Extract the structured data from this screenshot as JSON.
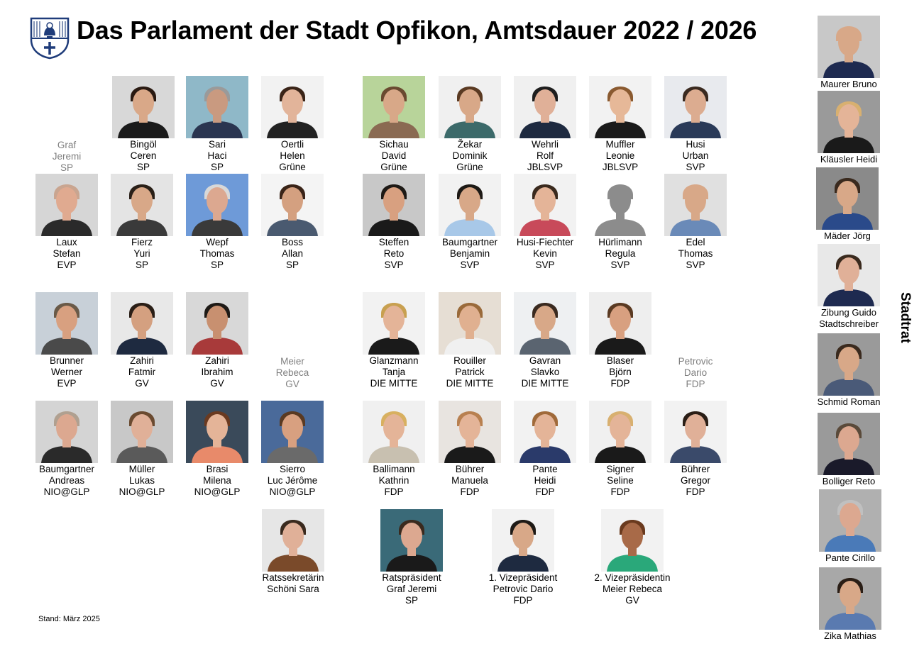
{
  "title": "Das Parlament der Stadt Opfikon, Amtsdauer 2022 / 2026",
  "stand": "Stand: März 2025",
  "stadtrat_label": "Stadtrat",
  "colors": {
    "absent_text": "#7f7f7f",
    "crest_blue": "#1f3c7a"
  },
  "absent": [
    {
      "lines": [
        "Graf",
        "Jeremi",
        "SP"
      ]
    },
    {
      "lines": [
        "Meier",
        "Rebeca",
        "GV"
      ]
    },
    {
      "lines": [
        "Petrovic",
        "Dario",
        "FDP"
      ]
    }
  ],
  "members": [
    {
      "lines": [
        "Bingöl",
        "Ceren",
        "SP"
      ],
      "bg": "#d8d8d8",
      "skin": "#d9a888",
      "hair": "#2a1a12",
      "shirt": "#1a1a1a"
    },
    {
      "lines": [
        "Sari",
        "Haci",
        "SP"
      ],
      "bg": "#8fb8c8",
      "skin": "#c99a80",
      "hair": "#9a9a9a",
      "shirt": "#2a3550"
    },
    {
      "lines": [
        "Oertli",
        "Helen",
        "Grüne"
      ],
      "bg": "#f2f2f2",
      "skin": "#e2b49a",
      "hair": "#3a2418",
      "shirt": "#222222"
    },
    {
      "lines": [
        "Sichau",
        "David",
        "Grüne"
      ],
      "bg": "#b8d49a",
      "skin": "#d8a888",
      "hair": "#6a4a30",
      "shirt": "#8a6a52"
    },
    {
      "lines": [
        "Žekar",
        "Dominik",
        "Grüne"
      ],
      "bg": "#f0f0f0",
      "skin": "#d8a888",
      "hair": "#5a3a22",
      "shirt": "#3c6a6a"
    },
    {
      "lines": [
        "Wehrli",
        "Rolf",
        "JBLSVP"
      ],
      "bg": "#f0f0f0",
      "skin": "#e0b098",
      "hair": "#1e1e1e",
      "shirt": "#1e2a40"
    },
    {
      "lines": [
        "Muffler",
        "Leonie",
        "JBLSVP"
      ],
      "bg": "#f2f2f2",
      "skin": "#e6b898",
      "hair": "#8a5a30",
      "shirt": "#1a1a1a"
    },
    {
      "lines": [
        "Husi",
        "Urban",
        "SVP"
      ],
      "bg": "#e8eaee",
      "skin": "#dcac90",
      "hair": "#3a2a20",
      "shirt": "#2a3a58"
    },
    {
      "lines": [
        "Laux",
        "Stefan",
        "EVP"
      ],
      "bg": "#d6d6d6",
      "skin": "#e0aa90",
      "hair": "#c9a590",
      "shirt": "#2a2a2a"
    },
    {
      "lines": [
        "Fierz",
        "Yuri",
        "SP"
      ],
      "bg": "#e4e4e4",
      "skin": "#d8a888",
      "hair": "#2a2018",
      "shirt": "#3a3a3a"
    },
    {
      "lines": [
        "Wepf",
        "Thomas",
        "SP"
      ],
      "bg": "#6e9ad8",
      "skin": "#dca890",
      "hair": "#d8d8d8",
      "shirt": "#3a3a3a"
    },
    {
      "lines": [
        "Boss",
        "Allan",
        "SP"
      ],
      "bg": "#f4f4f4",
      "skin": "#d4a080",
      "hair": "#3a2418",
      "shirt": "#4a5a70"
    },
    {
      "lines": [
        "Steffen",
        "Reto",
        "SVP"
      ],
      "bg": "#c8c8c8",
      "skin": "#d8a080",
      "hair": "#1e1a16",
      "shirt": "#1a1a1a"
    },
    {
      "lines": [
        "Baumgartner",
        "Benjamin",
        "SVP"
      ],
      "bg": "#f2f2f2",
      "skin": "#d8a888",
      "hair": "#1e1a16",
      "shirt": "#a8c8e8"
    },
    {
      "lines": [
        "Husi-Fiechter",
        "Kevin",
        "SVP"
      ],
      "bg": "#f2f2f2",
      "skin": "#e4b498",
      "hair": "#3a2a1e",
      "shirt": "#c84a5a"
    },
    {
      "lines": [
        "Hürlimann",
        "Regula",
        "SVP"
      ],
      "bg": "#ffffff",
      "skin": "#8c8c8c",
      "hair": "#8c8c8c",
      "shirt": "#8c8c8c"
    },
    {
      "lines": [
        "Edel",
        "Thomas",
        "SVP"
      ],
      "bg": "#e0e0e0",
      "skin": "#d8a888",
      "hair": "#d8a888",
      "shirt": "#6a8ab8"
    },
    {
      "lines": [
        "Brunner",
        "Werner",
        "EVP"
      ],
      "bg": "#c8d0d8",
      "skin": "#d8a080",
      "hair": "#6a5a48",
      "shirt": "#4a4a4a"
    },
    {
      "lines": [
        "Zahiri",
        "Fatmir",
        "GV"
      ],
      "bg": "#e8e8e8",
      "skin": "#d4a080",
      "hair": "#2a1e16",
      "shirt": "#1e2a40"
    },
    {
      "lines": [
        "Zahiri",
        "Ibrahim",
        "GV"
      ],
      "bg": "#d8d8d8",
      "skin": "#c89070",
      "hair": "#1e1a16",
      "shirt": "#a83a3a"
    },
    {
      "lines": [
        "Glanzmann",
        "Tanja",
        "DIE MITTE"
      ],
      "bg": "#f2f2f2",
      "skin": "#e4b498",
      "hair": "#c8a050",
      "shirt": "#1a1a1a"
    },
    {
      "lines": [
        "Rouiller",
        "Patrick",
        "DIE MITTE"
      ],
      "bg": "#e6ded4",
      "skin": "#e0b090",
      "hair": "#9a6a3a",
      "shirt": "#f0f0f0"
    },
    {
      "lines": [
        "Gavran",
        "Slavko",
        "DIE MITTE"
      ],
      "bg": "#eef0f2",
      "skin": "#d8a888",
      "hair": "#3a2a20",
      "shirt": "#5a6470"
    },
    {
      "lines": [
        "Blaser",
        "Björn",
        "FDP"
      ],
      "bg": "#eeeeee",
      "skin": "#d8a080",
      "hair": "#5a3a22",
      "shirt": "#1a1a1a"
    },
    {
      "lines": [
        "Baumgartner",
        "Andreas",
        "NIO@GLP"
      ],
      "bg": "#d4d4d4",
      "skin": "#dca890",
      "hair": "#b0a090",
      "shirt": "#2a2a2a"
    },
    {
      "lines": [
        "Müller",
        "Lukas",
        "NIO@GLP"
      ],
      "bg": "#c8c8c8",
      "skin": "#e0b098",
      "hair": "#6a4a30",
      "shirt": "#5a5a5a"
    },
    {
      "lines": [
        "Brasi",
        "Milena",
        "NIO@GLP"
      ],
      "bg": "#3a4a5a",
      "skin": "#e4b498",
      "hair": "#6a3a20",
      "shirt": "#e88a6a"
    },
    {
      "lines": [
        "Sierro",
        "Luc Jérôme",
        "NIO@GLP"
      ],
      "bg": "#4a6a9a",
      "skin": "#d8a080",
      "hair": "#5a3a22",
      "shirt": "#6a6a6a"
    },
    {
      "lines": [
        "Ballimann",
        "Kathrin",
        "FDP"
      ],
      "bg": "#f0f0f0",
      "skin": "#e4b498",
      "hair": "#d8b060",
      "shirt": "#c8c0b0"
    },
    {
      "lines": [
        "Bührer",
        "Manuela",
        "FDP"
      ],
      "bg": "#e8e4e0",
      "skin": "#e4b498",
      "hair": "#b88050",
      "shirt": "#1a1a1a"
    },
    {
      "lines": [
        "Pante",
        "Heidi",
        "FDP"
      ],
      "bg": "#f2f2f2",
      "skin": "#e4b498",
      "hair": "#a06a3a",
      "shirt": "#2a3a6a"
    },
    {
      "lines": [
        "Signer",
        "Seline",
        "FDP"
      ],
      "bg": "#f0f0f0",
      "skin": "#e4b498",
      "hair": "#d8b070",
      "shirt": "#1a1a1a"
    },
    {
      "lines": [
        "Bührer",
        "Gregor",
        "FDP"
      ],
      "bg": "#f2f2f2",
      "skin": "#e0b098",
      "hair": "#2a1e16",
      "shirt": "#3a4a6a"
    },
    {
      "lines": [
        "Ratssekretärin",
        "Schöni Sara"
      ],
      "bg": "#e6e6e6",
      "skin": "#e0b098",
      "hair": "#3a2a1e",
      "shirt": "#7a4a2a"
    },
    {
      "lines": [
        "Ratspräsident",
        "Graf Jeremi",
        "SP"
      ],
      "bg": "#3a6a78",
      "skin": "#dca890",
      "hair": "#3a2a1e",
      "shirt": "#1a1a1a"
    },
    {
      "lines": [
        "1. Vizepräsident",
        "Petrovic Dario",
        "FDP"
      ],
      "bg": "#f2f2f2",
      "skin": "#d8a888",
      "hair": "#1e1a16",
      "shirt": "#1e2a40"
    },
    {
      "lines": [
        "2. Vizepräsidentin",
        "Meier Rebeca",
        "GV"
      ],
      "bg": "#f2f2f2",
      "skin": "#a86a48",
      "hair": "#6a3a1e",
      "shirt": "#2aa87a"
    }
  ],
  "stadtrat": [
    {
      "lines": [
        "Maurer Bruno"
      ],
      "bg": "#c8c8c8",
      "skin": "#d8a888",
      "hair": "#d8a888",
      "shirt": "#1e2a50"
    },
    {
      "lines": [
        "Kläusler Heidi"
      ],
      "bg": "#9a9a9a",
      "skin": "#e4b498",
      "hair": "#d8b070",
      "shirt": "#1a1a1a"
    },
    {
      "lines": [
        "Mäder Jörg"
      ],
      "bg": "#8a8a8a",
      "skin": "#d8a888",
      "hair": "#3a2a1e",
      "shirt": "#2a4a8a"
    },
    {
      "lines": [
        "Zibung Guido",
        "Stadtschreiber"
      ],
      "bg": "#e8e8e8",
      "skin": "#e0b098",
      "hair": "#3a2a1e",
      "shirt": "#1e2a50"
    },
    {
      "lines": [
        "Schmid Roman"
      ],
      "bg": "#9a9a9a",
      "skin": "#d8a888",
      "hair": "#3a2a1e",
      "shirt": "#4a5a78"
    },
    {
      "lines": [
        "Bolliger Reto"
      ],
      "bg": "#9a9a9a",
      "skin": "#dca890",
      "hair": "#5a4a3a",
      "shirt": "#1a1a2a"
    },
    {
      "lines": [
        "Pante Cirillo"
      ],
      "bg": "#b0b0b0",
      "skin": "#dca890",
      "hair": "#c0c0c0",
      "shirt": "#4a7ab8"
    },
    {
      "lines": [
        "Zika Mathias"
      ],
      "bg": "#a8a8a8",
      "skin": "#d8a888",
      "hair": "#2a1e16",
      "shirt": "#5a7ab0"
    }
  ]
}
